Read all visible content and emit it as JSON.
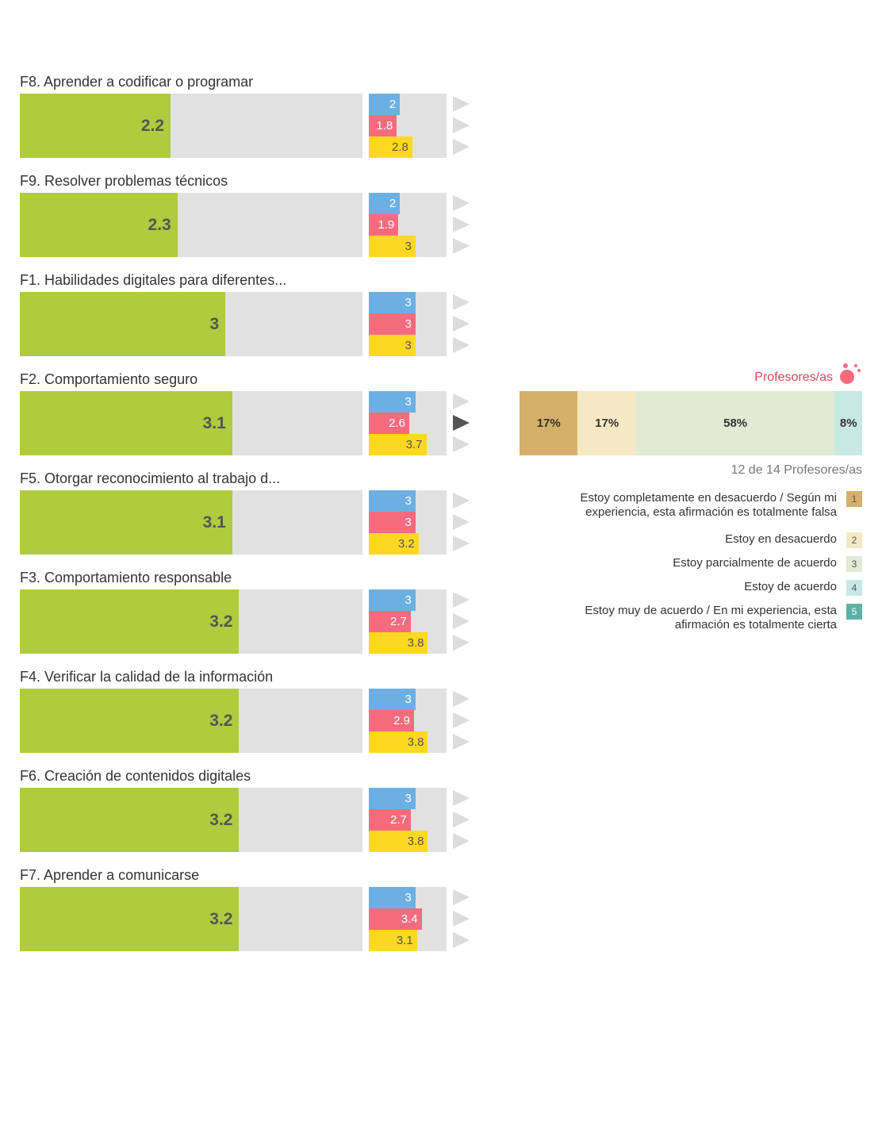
{
  "chart_data": {
    "type": "bar",
    "xlim": [
      0,
      5
    ],
    "grid": false,
    "categories": [
      "F8. Aprender a codificar o programar",
      "F9. Resolver problemas técnicos",
      "F1. Habilidades digitales para diferentes...",
      "F2. Comportamiento seguro",
      "F5. Otorgar reconocimiento al trabajo d...",
      "F3. Comportamiento responsable",
      "F4. Verificar la calidad de la información",
      "F6. Creación de contenidos digitales",
      "F7. Aprender a comunicarse"
    ],
    "series": [
      {
        "values": [
          2.2,
          2.3,
          3,
          3.1,
          3.1,
          3.2,
          3.2,
          3.2,
          3.2
        ]
      },
      {
        "values": [
          2,
          2,
          3,
          3,
          3,
          3,
          3,
          3,
          3
        ]
      },
      {
        "values": [
          1.8,
          1.9,
          3,
          2.6,
          3,
          2.7,
          2.9,
          2.7,
          3.4
        ]
      },
      {
        "values": [
          2.8,
          3,
          3,
          3.7,
          3.2,
          3.8,
          3.8,
          3.8,
          3.1
        ]
      }
    ],
    "value_labels": [
      [
        "2.2",
        "2",
        "1.8",
        "2.8"
      ],
      [
        "2.3",
        "2",
        "1.9",
        "3"
      ],
      [
        "3",
        "3",
        "3",
        "3"
      ],
      [
        "3.1",
        "3",
        "2.6",
        "3.7"
      ],
      [
        "3.1",
        "3",
        "3",
        "3.2"
      ],
      [
        "3.2",
        "3",
        "2.7",
        "3.8"
      ],
      [
        "3.2",
        "3",
        "2.9",
        "3.8"
      ],
      [
        "3.2",
        "3",
        "2.7",
        "3.8"
      ],
      [
        "3.2",
        "3",
        "3.4",
        "3.1"
      ]
    ],
    "selected_index": 3,
    "distribution": {
      "type": "stacked-bar",
      "group_label": "Profesores/as",
      "respondents": "12 de 14 Profesores/as",
      "segments": [
        {
          "category": "1",
          "percent": 17,
          "label": "17%"
        },
        {
          "category": "2",
          "percent": 17,
          "label": "17%"
        },
        {
          "category": "3",
          "percent": 58,
          "label": "58%"
        },
        {
          "category": "4",
          "percent": 8,
          "label": "8%"
        }
      ],
      "legend": [
        {
          "code": "1",
          "text": "Estoy completamente en desacuerdo / Según mi experiencia, esta afirmación es totalmente falsa"
        },
        {
          "code": "2",
          "text": "Estoy en desacuerdo"
        },
        {
          "code": "3",
          "text": "Estoy parcialmente de acuerdo"
        },
        {
          "code": "4",
          "text": "Estoy de acuerdo"
        },
        {
          "code": "5",
          "text": "Estoy muy de acuerdo / En mi experiencia, esta afirmación es totalmente cierta"
        }
      ]
    }
  },
  "colors": {
    "main": "#b0cb3e",
    "sub": [
      "#6cb0e3",
      "#f56b7e",
      "#fcd820"
    ],
    "track": "#e1e1e1",
    "arrow": "#dcdcdc",
    "arrow_active": "#555555",
    "scale": [
      "#d4b06a",
      "#f5e8c4",
      "#e1ead5",
      "#c8e8e3",
      "#5cb3a5"
    ],
    "group_label": "#e0455c"
  },
  "icons": {
    "group": "group-dots-icon",
    "arrow": "triangle-right-icon"
  }
}
